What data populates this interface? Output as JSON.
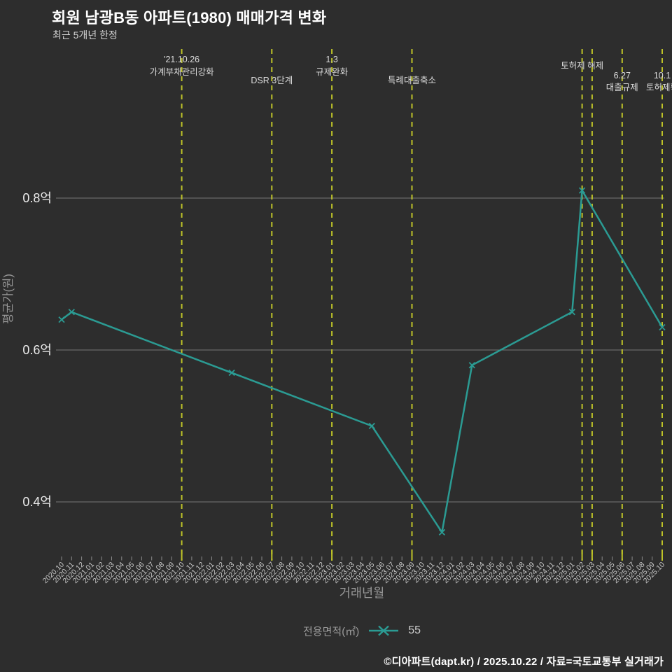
{
  "header": {
    "title": "회원 남광B동 아파트(1980) 매매가격 변화",
    "subtitle": "최근 5개년 한정"
  },
  "legend": {
    "label": "전용면적(㎡)",
    "value": "55"
  },
  "footer": {
    "credit": "©디아파트(dapt.kr) / 2025.10.22 / 자료=국토교통부 실거래가"
  },
  "colors": {
    "background": "#2d2d2d",
    "accent_line": "#2b9b93",
    "event_line": "#bec328",
    "grid": "#8b8b8b",
    "tick_text": "#c9c9c9",
    "y_tick_text": "#ebebeb",
    "axis_title": "#979797",
    "event_label": "#dcdcdc"
  },
  "chart_data": {
    "type": "line",
    "title": "회원 남광B동 아파트(1980) 매매가격 변화",
    "subtitle": "최근 5개년 한정",
    "xlabel": "거래년월",
    "ylabel": "평균가(원)",
    "unit": "억",
    "grid": true,
    "legend_position": "bottom-center",
    "ylim": [
      0.32,
      1.0
    ],
    "y_ticks": [
      {
        "label": "0.4억",
        "value": 0.4
      },
      {
        "label": "0.6억",
        "value": 0.6
      },
      {
        "label": "0.8억",
        "value": 0.8
      }
    ],
    "x_categories": [
      "2020.10",
      "2020.11",
      "2020.12",
      "2021.01",
      "2021.02",
      "2021.03",
      "2021.04",
      "2021.05",
      "2021.06",
      "2021.07",
      "2021.08",
      "2021.09",
      "2021.10",
      "2021.11",
      "2021.12",
      "2022.01",
      "2022.02",
      "2022.03",
      "2022.04",
      "2022.05",
      "2022.06",
      "2022.07",
      "2022.08",
      "2022.09",
      "2022.10",
      "2022.11",
      "2022.12",
      "2023.01",
      "2023.02",
      "2023.03",
      "2023.04",
      "2023.05",
      "2023.06",
      "2023.07",
      "2023.08",
      "2023.09",
      "2023.10",
      "2023.11",
      "2023.12",
      "2024.01",
      "2024.02",
      "2024.03",
      "2024.04",
      "2024.05",
      "2024.06",
      "2024.07",
      "2024.08",
      "2024.09",
      "2024.10",
      "2024.11",
      "2024.12",
      "2025.01",
      "2025.02",
      "2025.03",
      "2025.04",
      "2025.05",
      "2025.06",
      "2025.07",
      "2025.08",
      "2025.09",
      "2025.10"
    ],
    "series": [
      {
        "name": "55",
        "color": "#2b9b93",
        "points": [
          [
            "2020.10",
            0.64
          ],
          [
            "2020.11",
            0.65
          ],
          [
            "2022.03",
            0.57
          ],
          [
            "2023.05",
            0.5
          ],
          [
            "2023.12",
            0.36
          ],
          [
            "2024.03",
            0.58
          ],
          [
            "2025.01",
            0.65
          ],
          [
            "2025.02",
            0.81
          ],
          [
            "2025.10",
            0.63
          ]
        ]
      }
    ],
    "events": [
      {
        "x": "2021.10",
        "lines": [
          "'21.10.26",
          "가계부채관리강화"
        ],
        "label_ys": [
          89,
          107
        ]
      },
      {
        "x": "2022.07",
        "lines": [
          "DSR 3단계"
        ],
        "label_ys": [
          119
        ]
      },
      {
        "x": "2023.01",
        "lines": [
          "1.3",
          "규제완화"
        ],
        "label_ys": [
          89,
          107
        ]
      },
      {
        "x": "2023.09",
        "lines": [
          "특례대출축소"
        ],
        "label_ys": [
          119
        ]
      },
      {
        "x": "2025.02",
        "lines": [
          "토허제 해제"
        ],
        "label_ys": [
          98
        ]
      },
      {
        "x": "2025.03",
        "lines": [],
        "label_ys": []
      },
      {
        "x": "2025.06",
        "lines": [
          "6.27",
          "대출규제"
        ],
        "label_ys": [
          112,
          129
        ]
      },
      {
        "x": "2025.10",
        "lines": [
          "10.1",
          "토허제확"
        ],
        "label_ys": [
          112,
          129
        ]
      }
    ]
  }
}
